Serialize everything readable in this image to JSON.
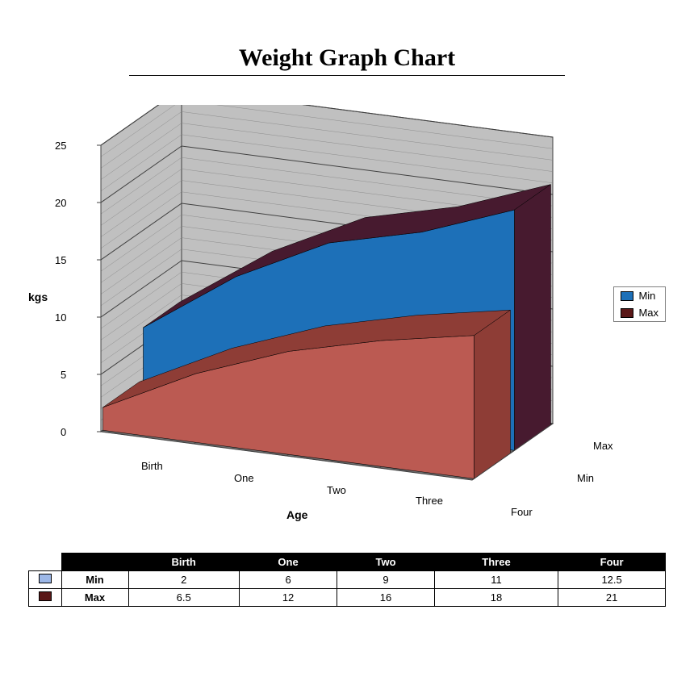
{
  "title": "Weight Graph Chart",
  "chart": {
    "type": "area3d",
    "ylabel": "kgs",
    "xlabel": "Age",
    "ylim": [
      0,
      25
    ],
    "ytick_step": 5,
    "yticks": [
      0,
      5,
      10,
      15,
      20,
      25
    ],
    "categories": [
      "Birth",
      "One",
      "Two",
      "Three",
      "Four"
    ],
    "depth_labels": [
      "Min",
      "Max"
    ],
    "series": [
      {
        "name": "Min",
        "values": [
          2,
          6,
          9,
          11,
          12.5
        ],
        "fill_color": "#bb5a52",
        "side_color": "#8e3d36",
        "swatch_color": "#5a1818"
      },
      {
        "name": "Max",
        "values": [
          6.5,
          12,
          16,
          18,
          21
        ],
        "fill_color": "#1d70b8",
        "side_color": "#471a2f",
        "swatch_color": "#1d70b8"
      }
    ],
    "legend": {
      "position": "right",
      "items": [
        {
          "label": "Min",
          "swatch": "#1d70b8"
        },
        {
          "label": "Max",
          "swatch": "#5a1818"
        }
      ]
    },
    "wall_color": "#c0c0c0",
    "floor_color": "#6e6e6e",
    "grid_color": "#404040",
    "grid_minor_color": "#808080",
    "background_color": "#ffffff",
    "title_fontsize": 30,
    "label_fontsize": 14,
    "tick_fontsize": 13
  },
  "table": {
    "columns": [
      "",
      "Birth",
      "One",
      "Two",
      "Three",
      "Four"
    ],
    "rows": [
      {
        "swatch": "#9db8e8",
        "label": "Min",
        "cells": [
          "2",
          "6",
          "9",
          "11",
          "12.5"
        ]
      },
      {
        "swatch": "#5a1818",
        "label": "Max",
        "cells": [
          "6.5",
          "12",
          "16",
          "18",
          "21"
        ]
      }
    ],
    "header_bg": "#000000",
    "header_fg": "#ffffff"
  }
}
